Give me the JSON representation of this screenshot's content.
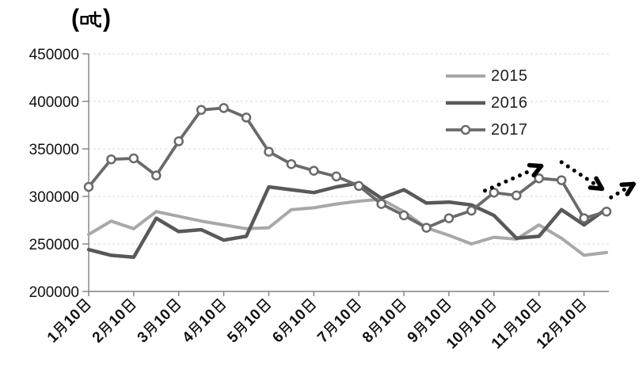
{
  "title": {
    "text": "（吨）"
  },
  "legend": {
    "entries": [
      {
        "label": "2015",
        "color": "#a8a8a8",
        "marker": false
      },
      {
        "label": "2016",
        "color": "#595959",
        "marker": false
      },
      {
        "label": "2017",
        "color": "#6a6a6a",
        "marker": true
      }
    ]
  },
  "chart_data": {
    "type": "line",
    "title": "（吨）",
    "xlabel": "",
    "ylabel": "吨",
    "ylim": [
      200000,
      450000
    ],
    "ytick_interval": 50000,
    "ytick_labels": [
      "200000",
      "250000",
      "300000",
      "350000",
      "400000",
      "450000"
    ],
    "x_tick_labels": [
      "1月10日",
      "2月10日",
      "3月10日",
      "4月10日",
      "5月10日",
      "6月10日",
      "7月10日",
      "8月10日",
      "9月10日",
      "10月10日",
      "11月10日",
      "12月10日"
    ],
    "points_per_month": 2,
    "grid": "horizontal-dashed",
    "legend_position": "upper-right-inside",
    "series": [
      {
        "name": "2015",
        "color": "#a8a8a8",
        "line_width": 4,
        "markers": false,
        "values": [
          260000,
          274000,
          266000,
          284000,
          279000,
          274000,
          270000,
          266000,
          267000,
          286000,
          288000,
          292000,
          295000,
          297000,
          284000,
          267000,
          259000,
          250000,
          257000,
          255000,
          270000,
          256000,
          238000,
          241000
        ]
      },
      {
        "name": "2016",
        "color": "#595959",
        "line_width": 4.5,
        "markers": false,
        "values": [
          244000,
          238000,
          236000,
          277000,
          263000,
          265000,
          254000,
          258000,
          310000,
          307000,
          304000,
          310000,
          314000,
          298000,
          307000,
          293000,
          294000,
          291000,
          280000,
          256000,
          258000,
          286000,
          270000,
          287000
        ]
      },
      {
        "name": "2017",
        "color": "#6a6a6a",
        "line_width": 3.8,
        "markers": true,
        "values": [
          310000,
          339000,
          340000,
          322000,
          358000,
          391000,
          393000,
          383000,
          347000,
          334000,
          327000,
          321000,
          311000,
          292000,
          280000,
          267000,
          277000,
          285000,
          304000,
          301000,
          319000,
          317000,
          277000,
          284000
        ]
      }
    ],
    "annotations": [
      {
        "type": "dotted-arrow",
        "direction": "up-right",
        "from": {
          "t": 17.6,
          "value": 306000
        },
        "to": {
          "t": 20.1,
          "value": 332000
        }
      },
      {
        "type": "dotted-arrow",
        "direction": "down-right",
        "from": {
          "t": 21.0,
          "value": 336000
        },
        "to": {
          "t": 22.8,
          "value": 308000
        }
      },
      {
        "type": "dotted-arrow",
        "direction": "up-right",
        "from": {
          "t": 23.2,
          "value": 299000
        },
        "to": {
          "t": 24.2,
          "value": 313000
        }
      }
    ]
  }
}
